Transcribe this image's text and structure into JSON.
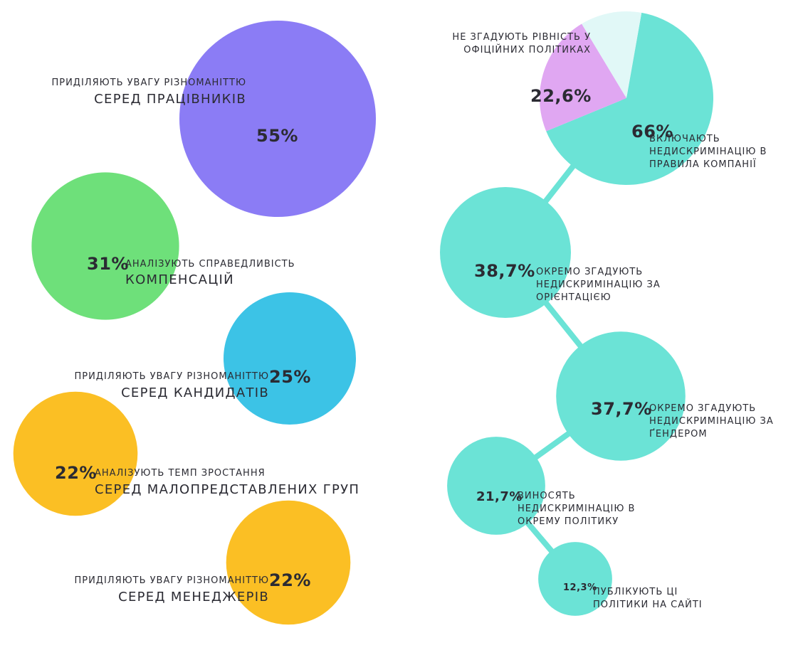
{
  "colors": {
    "purple": "#8b7cf5",
    "green": "#6ee07a",
    "blue": "#3cc3e6",
    "yellow": "#fbbf24",
    "teal": "#6be3d6",
    "pink": "#e0a7f2",
    "pale": "#e1f8f7"
  },
  "left": [
    {
      "pct": "55%",
      "small": "ПРИДІЛЯЮТЬ УВАГУ РІЗНОМАНІТТЮ",
      "big": "СЕРЕД ПРАЦІВНИКІВ"
    },
    {
      "pct": "31%",
      "small": "АНАЛІЗУЮТЬ СПРАВЕДЛИВІСТЬ",
      "big": "КОМПЕНСАЦІЙ"
    },
    {
      "pct": "25%",
      "small": "ПРИДІЛЯЮТЬ УВАГУ РІЗНОМАНІТТЮ",
      "big": "СЕРЕД КАНДИДАТІВ"
    },
    {
      "pct": "22%",
      "small": "АНАЛІЗУЮТЬ ТЕМП ЗРОСТАННЯ",
      "big": "СЕРЕД МАЛОПРЕДСТАВЛЕНИХ ГРУП"
    },
    {
      "pct": "22%",
      "small": "ПРИДІЛЯЮТЬ УВАГУ РІЗНОМАНІТТЮ",
      "big": "СЕРЕД МЕНЕДЖЕРІВ"
    }
  ],
  "right": {
    "pie_pink_label": "НЕ ЗГАДУЮТЬ РІВНІСТЬ У ОФІЦІЙНИХ ПОЛІТИКАХ",
    "pie_pink_pct": "22,6%",
    "pie_teal_pct": "66%",
    "pie_teal_label": "ВКЛЮЧАЮТЬ НЕДИСКРИМІНАЦІЮ В ПРАВИЛА КОМПАНІЇ",
    "chain": [
      {
        "pct": "38,7%",
        "label": "ОКРЕМО ЗГАДУЮТЬ НЕДИСКРИМІНАЦІЮ ЗА ОРІЄНТАЦІЄЮ"
      },
      {
        "pct": "37,7%",
        "label": "ОКРЕМО ЗГАДУЮТЬ НЕДИСКРИМІНАЦІЮ ЗА ҐЕНДЕРОМ"
      },
      {
        "pct": "21,7%",
        "label": "ВИНОСЯТЬ НЕДИСКРИМІНАЦІЮ В ОКРЕМУ ПОЛІТИКУ"
      },
      {
        "pct": "12,3%",
        "label": "ПУБЛІКУЮТЬ ЦІ ПОЛІТИКИ НА САЙТІ"
      }
    ]
  },
  "chart_data": [
    {
      "type": "bubble",
      "categories": [
        "ПРИДІЛЯЮТЬ УВАГУ РІЗНОМАНІТТЮ СЕРЕД ПРАЦІВНИКІВ",
        "АНАЛІЗУЮТЬ СПРАВЕДЛИВІСТЬ КОМПЕНСАЦІЙ",
        "ПРИДІЛЯЮТЬ УВАГУ РІЗНОМАНІТТЮ СЕРЕД КАНДИДАТІВ",
        "АНАЛІЗУЮТЬ ТЕМП ЗРОСТАННЯ СЕРЕД МАЛОПРЕДСТАВЛЕНИХ ГРУП",
        "ПРИДІЛЯЮТЬ УВАГУ РІЗНОМАНІТТЮ СЕРЕД МЕНЕДЖЕРІВ"
      ],
      "values": [
        55,
        31,
        25,
        22,
        22
      ]
    },
    {
      "type": "pie",
      "categories": [
        "ВКЛЮЧАЮТЬ НЕДИСКРИМІНАЦІЮ В ПРАВИЛА КОМПАНІЇ",
        "НЕ ЗГАДУЮТЬ РІВНІСТЬ У ОФІЦІЙНИХ ПОЛІТИКАХ",
        ""
      ],
      "values": [
        66,
        22.6,
        11.4
      ]
    },
    {
      "type": "bubble",
      "categories": [
        "ОКРЕМО ЗГАДУЮТЬ НЕДИСКРИМІНАЦІЮ ЗА ОРІЄНТАЦІЄЮ",
        "ОКРЕМО ЗГАДУЮТЬ НЕДИСКРИМІНАЦІЮ ЗА ҐЕНДЕРОМ",
        "ВИНОСЯТЬ НЕДИСКРИМІНАЦІЮ В ОКРЕМУ ПОЛІТИКУ",
        "ПУБЛІКУЮТЬ ЦІ ПОЛІТИКИ НА САЙТІ"
      ],
      "values": [
        38.7,
        37.7,
        21.7,
        12.3
      ]
    }
  ]
}
